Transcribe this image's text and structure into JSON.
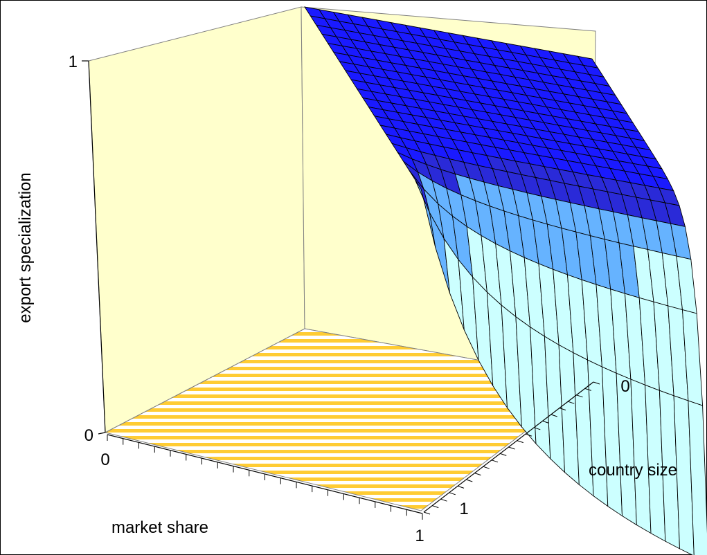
{
  "chart_data": {
    "type": "surface",
    "title": "",
    "x_axis": {
      "label": "market share",
      "min": 0,
      "max": 1,
      "tick_labels": [
        "0",
        "1"
      ]
    },
    "y_axis": {
      "label": "country size",
      "min": 0,
      "max": 1,
      "tick_labels": [
        "0",
        "1"
      ]
    },
    "z_axis": {
      "label": "export specialization",
      "min": 0,
      "max": 1,
      "tick_labels": [
        "0",
        "1"
      ]
    },
    "grid": false,
    "legend": "none",
    "colors": {
      "surface_top": "#1a1aff",
      "surface_mid": "#2a2ad8",
      "surface_high_band": "#66b3ff",
      "surface_low": "#ccffff",
      "wall": "#ffffcc",
      "floor_stripe": "#ffcc33",
      "mesh_line": "#000000"
    }
  }
}
